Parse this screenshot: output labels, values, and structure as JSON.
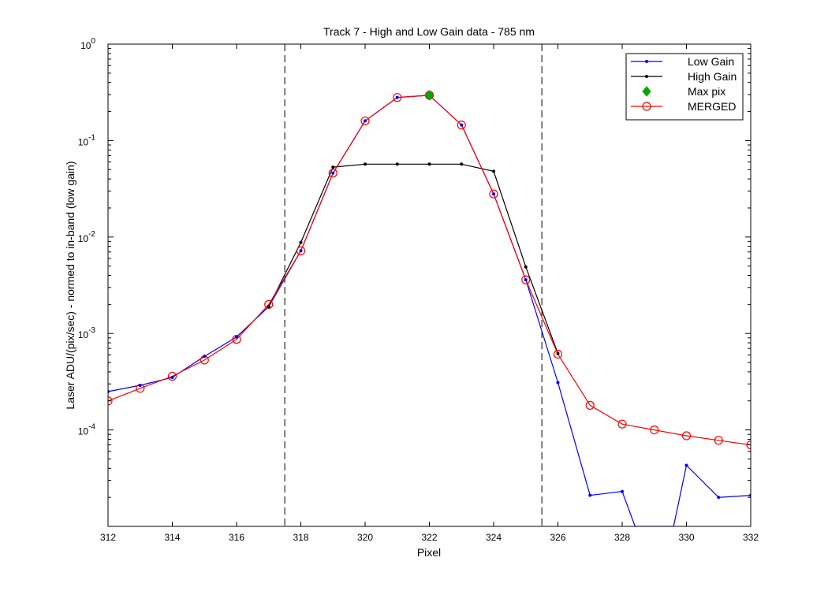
{
  "chart_data": {
    "type": "line",
    "title": "Track 7 - High and Low Gain data - 785 nm",
    "xlabel": "Pixel",
    "ylabel": "Laser ADU/(pix/sec) - normed to in-band (low gain)",
    "xlim": [
      312,
      332
    ],
    "ylim": [
      1e-05,
      1
    ],
    "yscale": "log",
    "grid": false,
    "legend_position": "top-right",
    "x_ticks": [
      "312",
      "314",
      "316",
      "318",
      "320",
      "322",
      "324",
      "326",
      "328",
      "330",
      "332"
    ],
    "y_ticks": [
      {
        "base": "10",
        "exp": "0"
      },
      {
        "base": "10",
        "exp": "-1"
      },
      {
        "base": "10",
        "exp": "-2"
      },
      {
        "base": "10",
        "exp": "-3"
      },
      {
        "base": "10",
        "exp": "-4"
      }
    ],
    "vlines": [
      317.5,
      325.5
    ],
    "series": [
      {
        "name": "Low Gain",
        "color": "#0000ff",
        "marker": "dot",
        "x": [
          312,
          313,
          314,
          315,
          316,
          317,
          318,
          319,
          320,
          321,
          322,
          323,
          324,
          325,
          326,
          327,
          328,
          328.4,
          329.6,
          330,
          331,
          332
        ],
        "y": [
          0.00025,
          0.00029,
          0.00035,
          0.00058,
          0.00092,
          0.0019,
          0.0072,
          0.046,
          0.16,
          0.28,
          0.295,
          0.145,
          0.028,
          0.0036,
          0.00031,
          2.1e-05,
          2.3e-05,
          1e-05,
          1e-05,
          4.3e-05,
          2e-05,
          2.1e-05
        ]
      },
      {
        "name": "High Gain",
        "color": "#000000",
        "marker": "dot",
        "x": [
          317,
          318,
          319,
          320,
          321,
          322,
          323,
          324,
          325,
          326
        ],
        "y": [
          0.0019,
          0.0088,
          0.053,
          0.057,
          0.057,
          0.057,
          0.057,
          0.048,
          0.0049,
          0.00062
        ]
      },
      {
        "name": "Max pix",
        "color": "#00aa00",
        "marker": "diamond",
        "x": [
          322
        ],
        "y": [
          0.295
        ]
      },
      {
        "name": "MERGED",
        "color": "#ff0000",
        "marker": "circle",
        "x": [
          312,
          313,
          314,
          315,
          316,
          317,
          318,
          319,
          320,
          321,
          322,
          323,
          324,
          325,
          326,
          327,
          328,
          329,
          330,
          331,
          332
        ],
        "y": [
          0.0002,
          0.00027,
          0.00036,
          0.00053,
          0.00087,
          0.002,
          0.0072,
          0.046,
          0.16,
          0.28,
          0.295,
          0.145,
          0.028,
          0.0036,
          0.00061,
          0.00018,
          0.000115,
          0.0001,
          8.7e-05,
          7.8e-05,
          7e-05
        ]
      }
    ]
  }
}
